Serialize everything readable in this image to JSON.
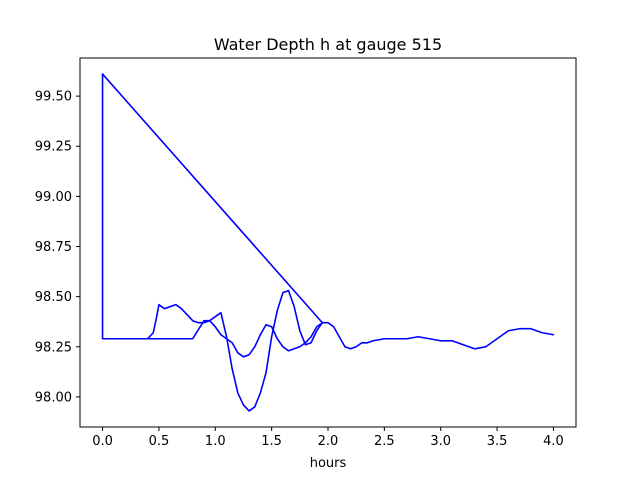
{
  "chart_data": {
    "type": "line",
    "title": "Water Depth h at gauge 515",
    "xlabel": "hours",
    "ylabel": "",
    "xlim": [
      -0.2,
      4.2
    ],
    "ylim": [
      97.85,
      99.69
    ],
    "xticks": [
      0.0,
      0.5,
      1.0,
      1.5,
      2.0,
      2.5,
      3.0,
      3.5,
      4.0
    ],
    "xtick_labels": [
      "0.0",
      "0.5",
      "1.0",
      "1.5",
      "2.0",
      "2.5",
      "3.0",
      "3.5",
      "4.0"
    ],
    "yticks": [
      98.0,
      98.25,
      98.5,
      98.75,
      99.0,
      99.25,
      99.5
    ],
    "ytick_labels": [
      "98.00",
      "98.25",
      "98.50",
      "98.75",
      "99.00",
      "99.25",
      "99.50"
    ],
    "grid": false,
    "legend": "none",
    "series": [
      {
        "color": "#0000ff",
        "x": [
          0.0,
          0.0,
          0.2,
          0.4,
          0.45,
          0.48,
          0.5,
          0.55,
          0.6,
          0.65,
          0.7,
          0.75,
          0.8,
          0.85,
          0.9,
          0.95,
          1.0,
          1.05,
          1.1,
          1.15,
          1.2,
          1.25,
          1.3,
          1.35,
          1.4,
          1.45,
          1.5,
          1.55,
          1.6,
          1.65,
          1.7,
          1.75,
          1.8,
          1.85,
          1.9,
          1.95,
          2.0,
          2.05,
          2.1,
          2.15,
          2.2,
          2.25,
          2.3,
          2.35,
          2.4,
          2.5,
          2.6,
          2.7,
          2.8,
          2.9,
          3.0,
          3.1,
          3.15,
          3.2,
          3.3,
          3.4,
          3.5,
          3.6,
          3.7,
          3.8,
          3.9,
          4.0
        ],
        "y": [
          99.61,
          98.29,
          98.29,
          98.29,
          98.32,
          98.4,
          98.46,
          98.44,
          98.45,
          98.46,
          98.44,
          98.41,
          98.38,
          98.37,
          98.37,
          98.38,
          98.4,
          98.42,
          98.3,
          98.14,
          98.02,
          97.96,
          97.93,
          97.95,
          98.02,
          98.12,
          98.3,
          98.43,
          98.52,
          98.53,
          98.45,
          98.33,
          98.26,
          98.27,
          98.33,
          98.37,
          98.37,
          98.35,
          98.3,
          98.25,
          98.24,
          98.25,
          98.27,
          98.27,
          98.28,
          98.29,
          98.29,
          98.29,
          98.3,
          98.29,
          98.28,
          98.28,
          98.27,
          98.26,
          98.24,
          98.25,
          98.29,
          98.33,
          98.34,
          98.34,
          98.32,
          98.31
        ]
      },
      {
        "color": "#0000ff",
        "x": [
          0.0,
          0.2,
          0.4,
          0.6,
          0.8,
          0.9,
          0.95,
          1.0,
          1.05,
          1.1,
          1.15,
          1.2,
          1.25,
          1.3,
          1.35,
          1.4,
          1.45,
          1.5,
          1.55,
          1.6,
          1.65,
          1.7,
          1.75,
          1.8,
          1.85,
          1.9,
          1.95
        ],
        "y": [
          98.29,
          98.29,
          98.29,
          98.29,
          98.29,
          98.38,
          98.38,
          98.35,
          98.31,
          98.29,
          98.27,
          98.22,
          98.2,
          98.21,
          98.25,
          98.31,
          98.36,
          98.35,
          98.29,
          98.25,
          98.23,
          98.24,
          98.25,
          98.27,
          98.3,
          98.35,
          98.37
        ]
      },
      {
        "color": "#0000ff",
        "x": [
          0.0,
          1.95
        ],
        "y": [
          99.61,
          98.37
        ]
      }
    ]
  }
}
